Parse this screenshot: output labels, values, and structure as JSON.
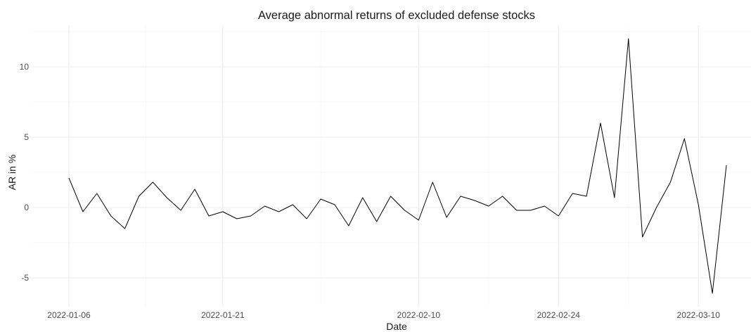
{
  "chart_data": {
    "type": "line",
    "title": "Average abnormal returns of excluded defense stocks",
    "xlabel": "Date",
    "ylabel": "AR in %",
    "grid": true,
    "x_ticks": [
      "2022-01-06",
      "2022-01-21",
      "2022-02-10",
      "2022-02-24",
      "2022-03-10"
    ],
    "y_ticks": [
      -5,
      0,
      5,
      10
    ],
    "xlim": [
      "2022-01-04",
      "2022-03-11"
    ],
    "ylim": [
      -6.9,
      13.0
    ],
    "colors": {
      "line": "#000000",
      "grid": "#ebebeb"
    },
    "series": [
      {
        "points": [
          {
            "x": "2022-01-06",
            "y": 2.1
          },
          {
            "x": "2022-01-07",
            "y": -0.3
          },
          {
            "x": "2022-01-10",
            "y": 1.0
          },
          {
            "x": "2022-01-11",
            "y": -0.6
          },
          {
            "x": "2022-01-12",
            "y": -1.5
          },
          {
            "x": "2022-01-13",
            "y": 0.8
          },
          {
            "x": "2022-01-14",
            "y": 1.8
          },
          {
            "x": "2022-01-17",
            "y": 0.7
          },
          {
            "x": "2022-01-18",
            "y": -0.2
          },
          {
            "x": "2022-01-19",
            "y": 1.3
          },
          {
            "x": "2022-01-20",
            "y": -0.6
          },
          {
            "x": "2022-01-21",
            "y": -0.3
          },
          {
            "x": "2022-01-24",
            "y": -0.8
          },
          {
            "x": "2022-01-25",
            "y": -0.6
          },
          {
            "x": "2022-01-26",
            "y": 0.1
          },
          {
            "x": "2022-01-27",
            "y": -0.3
          },
          {
            "x": "2022-01-28",
            "y": 0.2
          },
          {
            "x": "2022-01-31",
            "y": -0.8
          },
          {
            "x": "2022-02-01",
            "y": 0.6
          },
          {
            "x": "2022-02-02",
            "y": 0.2
          },
          {
            "x": "2022-02-03",
            "y": -1.3
          },
          {
            "x": "2022-02-04",
            "y": 0.7
          },
          {
            "x": "2022-02-07",
            "y": -1.0
          },
          {
            "x": "2022-02-08",
            "y": 0.8
          },
          {
            "x": "2022-02-09",
            "y": -0.2
          },
          {
            "x": "2022-02-10",
            "y": -0.9
          },
          {
            "x": "2022-02-11",
            "y": 1.8
          },
          {
            "x": "2022-02-14",
            "y": -0.7
          },
          {
            "x": "2022-02-15",
            "y": 0.8
          },
          {
            "x": "2022-02-16",
            "y": 0.5
          },
          {
            "x": "2022-02-17",
            "y": 0.1
          },
          {
            "x": "2022-02-18",
            "y": 0.8
          },
          {
            "x": "2022-02-21",
            "y": -0.2
          },
          {
            "x": "2022-02-22",
            "y": -0.2
          },
          {
            "x": "2022-02-23",
            "y": 0.1
          },
          {
            "x": "2022-02-24",
            "y": -0.6
          },
          {
            "x": "2022-02-25",
            "y": 1.0
          },
          {
            "x": "2022-02-28",
            "y": 0.8
          },
          {
            "x": "2022-03-01",
            "y": 6.0
          },
          {
            "x": "2022-03-02",
            "y": 0.7
          },
          {
            "x": "2022-03-03",
            "y": 12.0
          },
          {
            "x": "2022-03-04",
            "y": -2.1
          },
          {
            "x": "2022-03-07",
            "y": 0.0
          },
          {
            "x": "2022-03-08",
            "y": 1.8
          },
          {
            "x": "2022-03-09",
            "y": 4.9
          },
          {
            "x": "2022-03-10",
            "y": 0.2
          },
          {
            "x": "2022-03-11",
            "y": -6.1
          },
          {
            "x": "2022-03-14",
            "y": 3.0
          }
        ]
      }
    ]
  }
}
